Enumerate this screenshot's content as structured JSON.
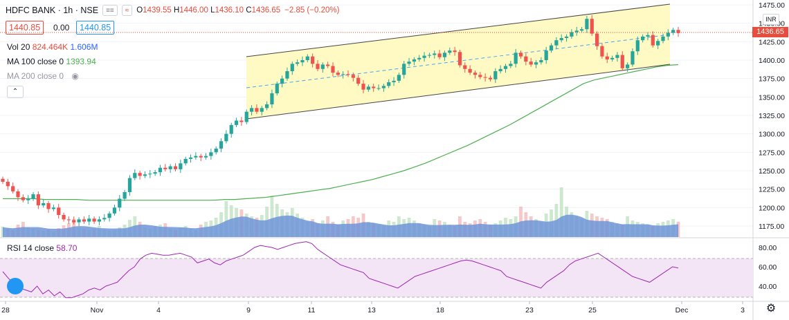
{
  "header": {
    "symbol": "HDFC BANK",
    "interval": "1h",
    "exchange": "NSE",
    "open_label": "O",
    "open": "1439.55",
    "high_label": "H",
    "high": "1446.00",
    "low_label": "L",
    "low": "1436.10",
    "close_label": "C",
    "close": "1436.65",
    "change": "−2.85 (−0.20%)"
  },
  "pricebar": {
    "bid": "1440.85",
    "spread": "0.00",
    "ask": "1440.85"
  },
  "indicators": {
    "vol_label": "Vol 20",
    "vol_value": "824.464K",
    "vol_ma": "1.606M",
    "ma100_label": "MA 100 close 0",
    "ma100_value": "1393.94",
    "ma200_label": "MA 200 close 0"
  },
  "rsi": {
    "label": "RSI 14 close",
    "value": "58.70",
    "axis_labels": [
      "80.00",
      "60.00",
      "40.00"
    ]
  },
  "price_axis": {
    "currency": "INR",
    "last_price": "1436.65",
    "labels": [
      "1475.00",
      "1450.00",
      "1425.00",
      "1400.00",
      "1375.00",
      "1350.00",
      "1325.00",
      "1300.00",
      "1275.00",
      "1250.00",
      "1225.00",
      "1200.00",
      "1175.00"
    ]
  },
  "time_axis": {
    "labels": [
      "28",
      "Nov",
      "4",
      "9",
      "11",
      "13",
      "18",
      "23",
      "25",
      "Dec",
      "3"
    ]
  },
  "colors": {
    "up": "#26a69a",
    "down": "#ef5350",
    "channel_fill": "#fff9c4",
    "ma100": "#4caf50",
    "volume_ma": "#5b8dd9",
    "rsi": "#9c27b0",
    "rsi_band": "#f3e5f5",
    "midline": "#42a5f5"
  },
  "chart_data": {
    "type": "candlestick",
    "ylim": [
      1160,
      1480
    ],
    "rsi_ylim": [
      20,
      95
    ],
    "close_series": [
      1235,
      1229,
      1222,
      1214,
      1210,
      1212,
      1218,
      1203,
      1206,
      1198,
      1200,
      1190,
      1184,
      1183,
      1180,
      1184,
      1181,
      1185,
      1181,
      1184,
      1186,
      1192,
      1200,
      1212,
      1221,
      1240,
      1247,
      1243,
      1245,
      1246,
      1248,
      1254,
      1252,
      1256,
      1252,
      1260,
      1266,
      1268,
      1270,
      1268,
      1270,
      1275,
      1280,
      1290,
      1300,
      1312,
      1318,
      1316,
      1330,
      1335,
      1330,
      1335,
      1340,
      1355,
      1368,
      1375,
      1385,
      1395,
      1397,
      1400,
      1405,
      1395,
      1388,
      1394,
      1392,
      1383,
      1380,
      1381,
      1380,
      1376,
      1368,
      1360,
      1364,
      1362,
      1362,
      1365,
      1370,
      1372,
      1380,
      1395,
      1398,
      1401,
      1403,
      1406,
      1407,
      1409,
      1404,
      1410,
      1413,
      1411,
      1393,
      1388,
      1383,
      1380,
      1377,
      1376,
      1374,
      1385,
      1388,
      1392,
      1395,
      1410,
      1405,
      1398,
      1394,
      1397,
      1400,
      1413,
      1420,
      1427,
      1430,
      1432,
      1438,
      1440,
      1442,
      1456,
      1436,
      1419,
      1405,
      1401,
      1403,
      1407,
      1389,
      1394,
      1412,
      1427,
      1432,
      1434,
      1420,
      1426,
      1432,
      1437,
      1441,
      1436.65
    ],
    "ma100_series": [
      1212,
      1212,
      1212,
      1212,
      1211,
      1211,
      1211,
      1211,
      1210,
      1210,
      1210,
      1210,
      1210,
      1210,
      1210,
      1210,
      1210,
      1210,
      1210,
      1210,
      1210,
      1211,
      1211,
      1212,
      1213,
      1214,
      1216,
      1218,
      1220,
      1222,
      1224,
      1226,
      1229,
      1232,
      1235,
      1238,
      1242,
      1246,
      1250,
      1255,
      1260,
      1266,
      1272,
      1278,
      1284,
      1291,
      1298,
      1305,
      1312,
      1320,
      1328,
      1336,
      1344,
      1352,
      1360,
      1368,
      1373,
      1376,
      1379,
      1382,
      1385,
      1388,
      1391,
      1393,
      1393.94
    ],
    "volume_series": [
      15,
      12,
      10,
      18,
      22,
      14,
      12,
      10,
      9,
      11,
      8,
      13,
      17,
      20,
      26,
      14,
      12,
      10,
      12,
      16,
      11,
      9,
      10,
      14,
      18,
      25,
      30,
      22,
      14,
      12,
      16,
      18,
      20,
      12,
      10,
      14,
      16,
      12,
      10,
      18,
      22,
      24,
      28,
      36,
      52,
      46,
      42,
      40,
      34,
      30,
      28,
      32,
      44,
      60,
      48,
      40,
      36,
      42,
      34,
      28,
      22,
      26,
      20,
      24,
      30,
      22,
      18,
      24,
      26,
      30,
      28,
      34,
      22,
      20,
      18,
      16,
      24,
      22,
      30,
      26,
      28,
      24,
      20,
      18,
      16,
      26,
      24,
      22,
      18,
      16,
      30,
      22,
      20,
      24,
      26,
      22,
      18,
      20,
      24,
      28,
      26,
      30,
      44,
      36,
      30,
      26,
      22,
      34,
      40,
      48,
      72,
      44,
      36,
      30,
      26,
      38,
      34,
      30,
      28,
      26,
      22,
      20,
      18,
      30,
      24,
      22,
      20,
      18,
      16,
      20,
      22,
      24,
      26,
      22
    ],
    "rsi_series": [
      55,
      48,
      42,
      38,
      36,
      34,
      40,
      32,
      36,
      30,
      34,
      28,
      28,
      30,
      32,
      36,
      38,
      36,
      40,
      42,
      44,
      50,
      56,
      60,
      68,
      72,
      74,
      73,
      72,
      72,
      73,
      74,
      72,
      70,
      64,
      66,
      68,
      64,
      62,
      66,
      68,
      70,
      72,
      76,
      80,
      82,
      81,
      80,
      78,
      80,
      82,
      84,
      85,
      86,
      84,
      78,
      74,
      70,
      66,
      62,
      60,
      58,
      56,
      54,
      48,
      46,
      44,
      42,
      40,
      38,
      42,
      46,
      50,
      52,
      54,
      56,
      58,
      60,
      62,
      64,
      66,
      67,
      66,
      64,
      62,
      60,
      58,
      56,
      50,
      48,
      46,
      44,
      42,
      40,
      38,
      44,
      48,
      52,
      56,
      62,
      66,
      68,
      70,
      72,
      74,
      70,
      66,
      62,
      58,
      54,
      50,
      48,
      46,
      44,
      48,
      52,
      56,
      60,
      58.7
    ]
  }
}
